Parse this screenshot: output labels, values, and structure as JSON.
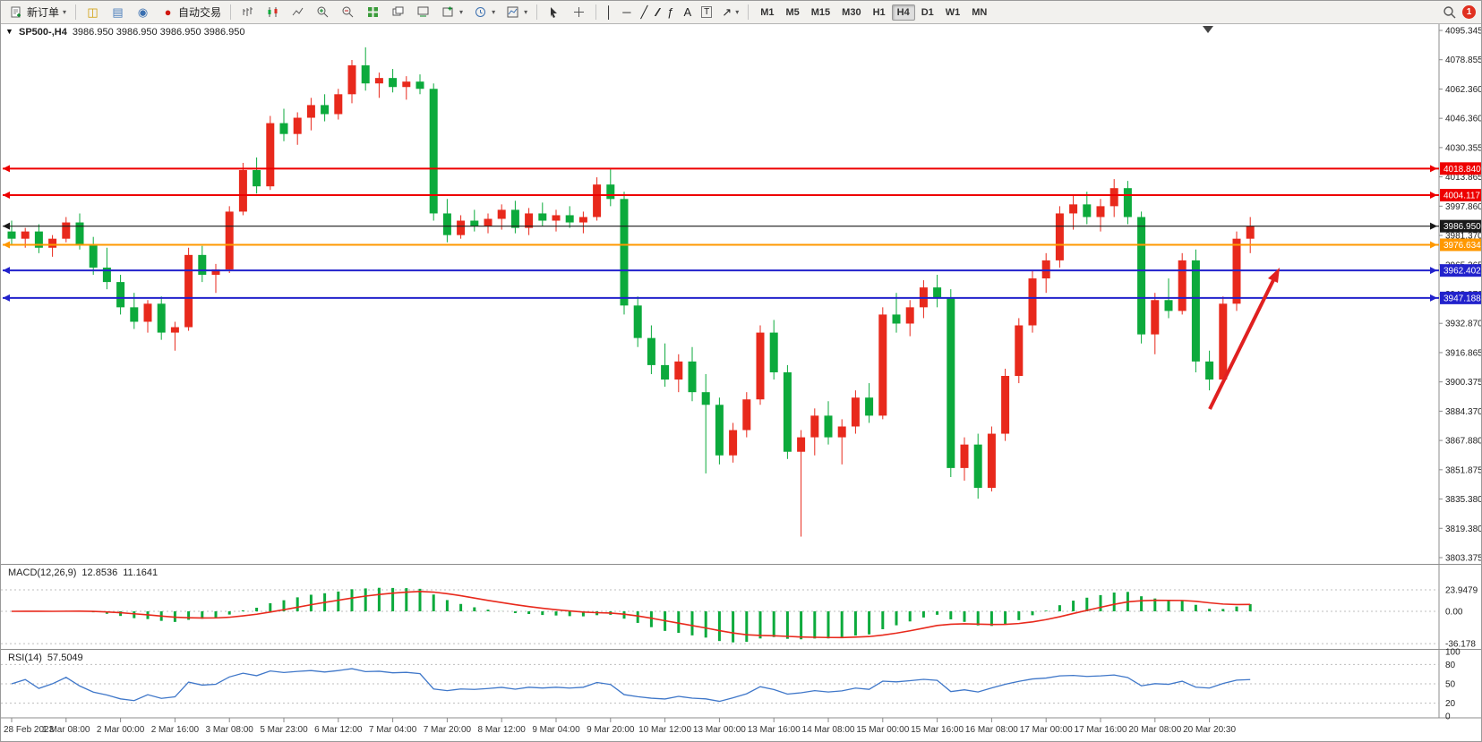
{
  "toolbar": {
    "new_order_label": "新订单",
    "auto_trading_label": "自动交易",
    "timeframes": [
      "M1",
      "M5",
      "M15",
      "M30",
      "H1",
      "H4",
      "D1",
      "W1",
      "MN"
    ],
    "active_timeframe": "H4",
    "notification_badge": "1",
    "drawing_tools": {
      "vertical_line": "│",
      "horizontal_line": "─",
      "trendline": "╱",
      "channel": "∕∕",
      "fibonacci": "ƒ",
      "text": "A",
      "text_label": "T",
      "arrows": "↗"
    }
  },
  "chart": {
    "title_symbol": "SP500-,H4",
    "title_values": "3986.950 3986.950 3986.950 3986.950"
  },
  "indicators": {
    "macd": {
      "label": "MACD(12,26,9)",
      "value_main": "12.8536",
      "value_signal": "11.1641",
      "axis_labels": [
        "23.9479",
        "0.00",
        "-36.178"
      ],
      "axis_values": [
        23.9479,
        0,
        -36.178
      ]
    },
    "rsi": {
      "label": "RSI(14)",
      "value": "57.5049",
      "axis_labels": [
        "100",
        "80",
        "50",
        "20",
        "0"
      ],
      "axis_values": [
        100,
        80,
        50,
        20,
        0
      ],
      "level_lines": [
        80,
        50,
        20
      ]
    }
  },
  "chart_data": {
    "type": "candlestick",
    "symbol": "SP500-",
    "timeframe": "H4",
    "title": "SP500-,H4",
    "price_range": {
      "top": 4095.345,
      "bottom": 3803.375
    },
    "price_axis_labels": [
      "4095.345",
      "4078.855",
      "4062.360",
      "4046.360",
      "4030.355",
      "4013.865",
      "3997.860",
      "3981.370",
      "3965.365",
      "3948.870",
      "3932.870",
      "3916.865",
      "3900.375",
      "3884.370",
      "3867.880",
      "3851.875",
      "3835.380",
      "3819.380",
      "3803.375"
    ],
    "time_axis_labels": [
      "28 Feb 2023",
      "1 Mar 08:00",
      "2 Mar 00:00",
      "2 Mar 16:00",
      "3 Mar 08:00",
      "5 Mar 23:00",
      "6 Mar 12:00",
      "7 Mar 04:00",
      "7 Mar 20:00",
      "8 Mar 12:00",
      "9 Mar 04:00",
      "9 Mar 20:00",
      "10 Mar 12:00",
      "13 Mar 00:00",
      "13 Mar 16:00",
      "14 Mar 08:00",
      "15 Mar 00:00",
      "15 Mar 16:00",
      "16 Mar 08:00",
      "17 Mar 00:00",
      "17 Mar 16:00",
      "20 Mar 08:00",
      "20 Mar 20:30"
    ],
    "candles": [
      [
        3984,
        3990,
        3977,
        3980
      ],
      [
        3980,
        3986,
        3975,
        3984
      ],
      [
        3984,
        3988,
        3972,
        3975
      ],
      [
        3975,
        3982,
        3970,
        3980
      ],
      [
        3980,
        3992,
        3978,
        3989
      ],
      [
        3989,
        3994,
        3974,
        3977
      ],
      [
        3977,
        3981,
        3960,
        3964
      ],
      [
        3964,
        3975,
        3952,
        3956
      ],
      [
        3956,
        3960,
        3938,
        3942
      ],
      [
        3942,
        3950,
        3930,
        3934
      ],
      [
        3934,
        3946,
        3928,
        3944
      ],
      [
        3944,
        3948,
        3924,
        3928
      ],
      [
        3928,
        3934,
        3918,
        3931
      ],
      [
        3931,
        3975,
        3929,
        3971
      ],
      [
        3971,
        3976,
        3956,
        3960
      ],
      [
        3960,
        3966,
        3950,
        3963
      ],
      [
        3963,
        3998,
        3961,
        3995
      ],
      [
        3995,
        4022,
        3993,
        4018
      ],
      [
        4018,
        4025,
        4005,
        4009
      ],
      [
        4009,
        4048,
        4007,
        4044
      ],
      [
        4044,
        4052,
        4034,
        4038
      ],
      [
        4038,
        4050,
        4032,
        4047
      ],
      [
        4047,
        4058,
        4040,
        4054
      ],
      [
        4054,
        4060,
        4045,
        4049
      ],
      [
        4049,
        4063,
        4046,
        4060
      ],
      [
        4060,
        4079,
        4055,
        4076
      ],
      [
        4076,
        4086,
        4062,
        4066
      ],
      [
        4066,
        4072,
        4058,
        4069
      ],
      [
        4069,
        4074,
        4061,
        4064
      ],
      [
        4064,
        4070,
        4057,
        4067
      ],
      [
        4067,
        4071,
        4060,
        4063
      ],
      [
        4063,
        4066,
        3990,
        3994
      ],
      [
        3994,
        4002,
        3978,
        3982
      ],
      [
        3982,
        3993,
        3980,
        3990
      ],
      [
        3990,
        3996,
        3984,
        3987
      ],
      [
        3987,
        3994,
        3983,
        3991
      ],
      [
        3991,
        3999,
        3985,
        3996
      ],
      [
        3996,
        4001,
        3983,
        3986
      ],
      [
        3986,
        3997,
        3982,
        3994
      ],
      [
        3994,
        4000,
        3987,
        3990
      ],
      [
        3990,
        3996,
        3984,
        3993
      ],
      [
        3993,
        3998,
        3986,
        3989
      ],
      [
        3989,
        3995,
        3983,
        3992
      ],
      [
        3992,
        4014,
        3990,
        4010
      ],
      [
        4010,
        4019,
        3998,
        4002
      ],
      [
        4002,
        4006,
        3938,
        3943
      ],
      [
        3943,
        3948,
        3920,
        3925
      ],
      [
        3925,
        3932,
        3905,
        3910
      ],
      [
        3910,
        3922,
        3898,
        3902
      ],
      [
        3902,
        3916,
        3895,
        3912
      ],
      [
        3912,
        3920,
        3890,
        3895
      ],
      [
        3895,
        3905,
        3850,
        3888
      ],
      [
        3888,
        3892,
        3855,
        3860
      ],
      [
        3860,
        3878,
        3856,
        3874
      ],
      [
        3874,
        3895,
        3870,
        3891
      ],
      [
        3891,
        3932,
        3888,
        3928
      ],
      [
        3928,
        3935,
        3902,
        3906
      ],
      [
        3906,
        3910,
        3858,
        3862
      ],
      [
        3862,
        3874,
        3815,
        3870
      ],
      [
        3870,
        3886,
        3860,
        3882
      ],
      [
        3882,
        3890,
        3866,
        3870
      ],
      [
        3870,
        3880,
        3855,
        3876
      ],
      [
        3876,
        3896,
        3872,
        3892
      ],
      [
        3892,
        3900,
        3878,
        3882
      ],
      [
        3882,
        3942,
        3880,
        3938
      ],
      [
        3938,
        3950,
        3928,
        3933
      ],
      [
        3933,
        3946,
        3926,
        3942
      ],
      [
        3942,
        3957,
        3936,
        3953
      ],
      [
        3953,
        3960,
        3942,
        3947
      ],
      [
        3947,
        3952,
        3848,
        3853
      ],
      [
        3853,
        3870,
        3846,
        3866
      ],
      [
        3866,
        3872,
        3836,
        3842
      ],
      [
        3842,
        3876,
        3840,
        3872
      ],
      [
        3872,
        3908,
        3868,
        3904
      ],
      [
        3904,
        3936,
        3900,
        3932
      ],
      [
        3932,
        3962,
        3928,
        3958
      ],
      [
        3958,
        3972,
        3950,
        3968
      ],
      [
        3968,
        3998,
        3964,
        3994
      ],
      [
        3994,
        4004,
        3985,
        3999
      ],
      [
        3999,
        4006,
        3988,
        3992
      ],
      [
        3992,
        4002,
        3984,
        3998
      ],
      [
        3998,
        4013,
        3992,
        4008
      ],
      [
        4008,
        4012,
        3988,
        3992
      ],
      [
        3992,
        3995,
        3922,
        3927
      ],
      [
        3927,
        3950,
        3916,
        3946
      ],
      [
        3946,
        3958,
        3936,
        3940
      ],
      [
        3940,
        3972,
        3938,
        3968
      ],
      [
        3968,
        3974,
        3906,
        3912
      ],
      [
        3912,
        3918,
        3896,
        3902
      ],
      [
        3902,
        3948,
        3899,
        3944
      ],
      [
        3944,
        3984,
        3940,
        3980
      ],
      [
        3980,
        3992,
        3972,
        3986.95
      ]
    ],
    "levels": [
      {
        "price": 4018.84,
        "label": "4018.840",
        "color": "#ee0000",
        "current": false
      },
      {
        "price": 4004.117,
        "label": "4004.117",
        "color": "#ee0000",
        "current": false
      },
      {
        "price": 3986.95,
        "label": "3986.950",
        "color": "#1a1a1a",
        "current": true
      },
      {
        "price": 3976.634,
        "label": "3976.634",
        "color": "#ff9800",
        "current": false
      },
      {
        "price": 3962.402,
        "label": "3962.402",
        "color": "#2222cc",
        "current": false
      },
      {
        "price": 3947.188,
        "label": "3947.188",
        "color": "#2222cc",
        "current": false
      }
    ],
    "colors": {
      "bull": "#e8291c",
      "bear": "#0caa3c",
      "macd_histogram": "#0caa3c",
      "macd_signal": "#e8291c",
      "rsi_line": "#3f77c9",
      "arrow": "#e02020"
    }
  },
  "annotation": {
    "type": "arrow",
    "direction": "up-right",
    "color": "#e02020"
  }
}
